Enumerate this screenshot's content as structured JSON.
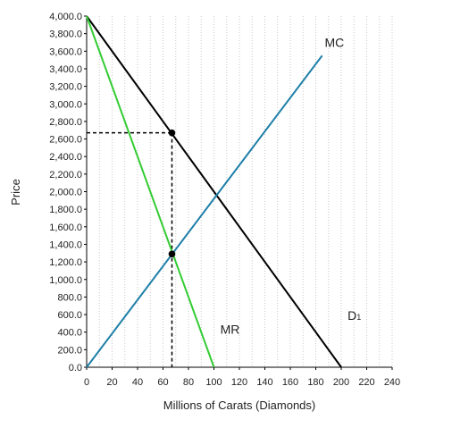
{
  "chart_data": {
    "type": "line",
    "title": "",
    "xlabel": "Millions of Carats (Diamonds)",
    "ylabel": "Price",
    "xlim": [
      0,
      240
    ],
    "ylim": [
      0,
      4000
    ],
    "x_ticks": [
      0,
      20,
      40,
      60,
      80,
      100,
      120,
      140,
      160,
      180,
      200,
      220,
      240
    ],
    "y_ticks": [
      "0.0",
      "200.0",
      "400.0",
      "600.0",
      "800.0",
      "1,000.0",
      "1,200.0",
      "1,400.0",
      "1,600.0",
      "1,800.0",
      "2,000.0",
      "2,200.0",
      "2,400.0",
      "2,600.0",
      "2,800.0",
      "3,000.0",
      "3,200.0",
      "3,400.0",
      "3,600.0",
      "3,800.0",
      "4,000.0"
    ],
    "grid": "vertical dotted",
    "series": [
      {
        "name": "D1",
        "label_main": "D",
        "label_sub": "1",
        "color": "#000000",
        "points": [
          [
            0,
            4000
          ],
          [
            200,
            0
          ]
        ],
        "label_at": [
          205,
          540
        ]
      },
      {
        "name": "MR",
        "color": "#33cc33",
        "points": [
          [
            0,
            4000
          ],
          [
            100,
            0
          ]
        ],
        "label_at": [
          105,
          380
        ]
      },
      {
        "name": "MC",
        "color": "#1f7fa8",
        "points": [
          [
            0,
            0
          ],
          [
            185,
            3550
          ]
        ],
        "label_at": [
          187,
          3650
        ]
      }
    ],
    "markers": [
      {
        "x": 67,
        "y": 2670
      },
      {
        "x": 67,
        "y": 1290
      }
    ],
    "guides": [
      {
        "from": [
          0,
          2670
        ],
        "to": [
          67,
          2670
        ]
      },
      {
        "from": [
          67,
          2670
        ],
        "to": [
          67,
          0
        ]
      }
    ]
  }
}
